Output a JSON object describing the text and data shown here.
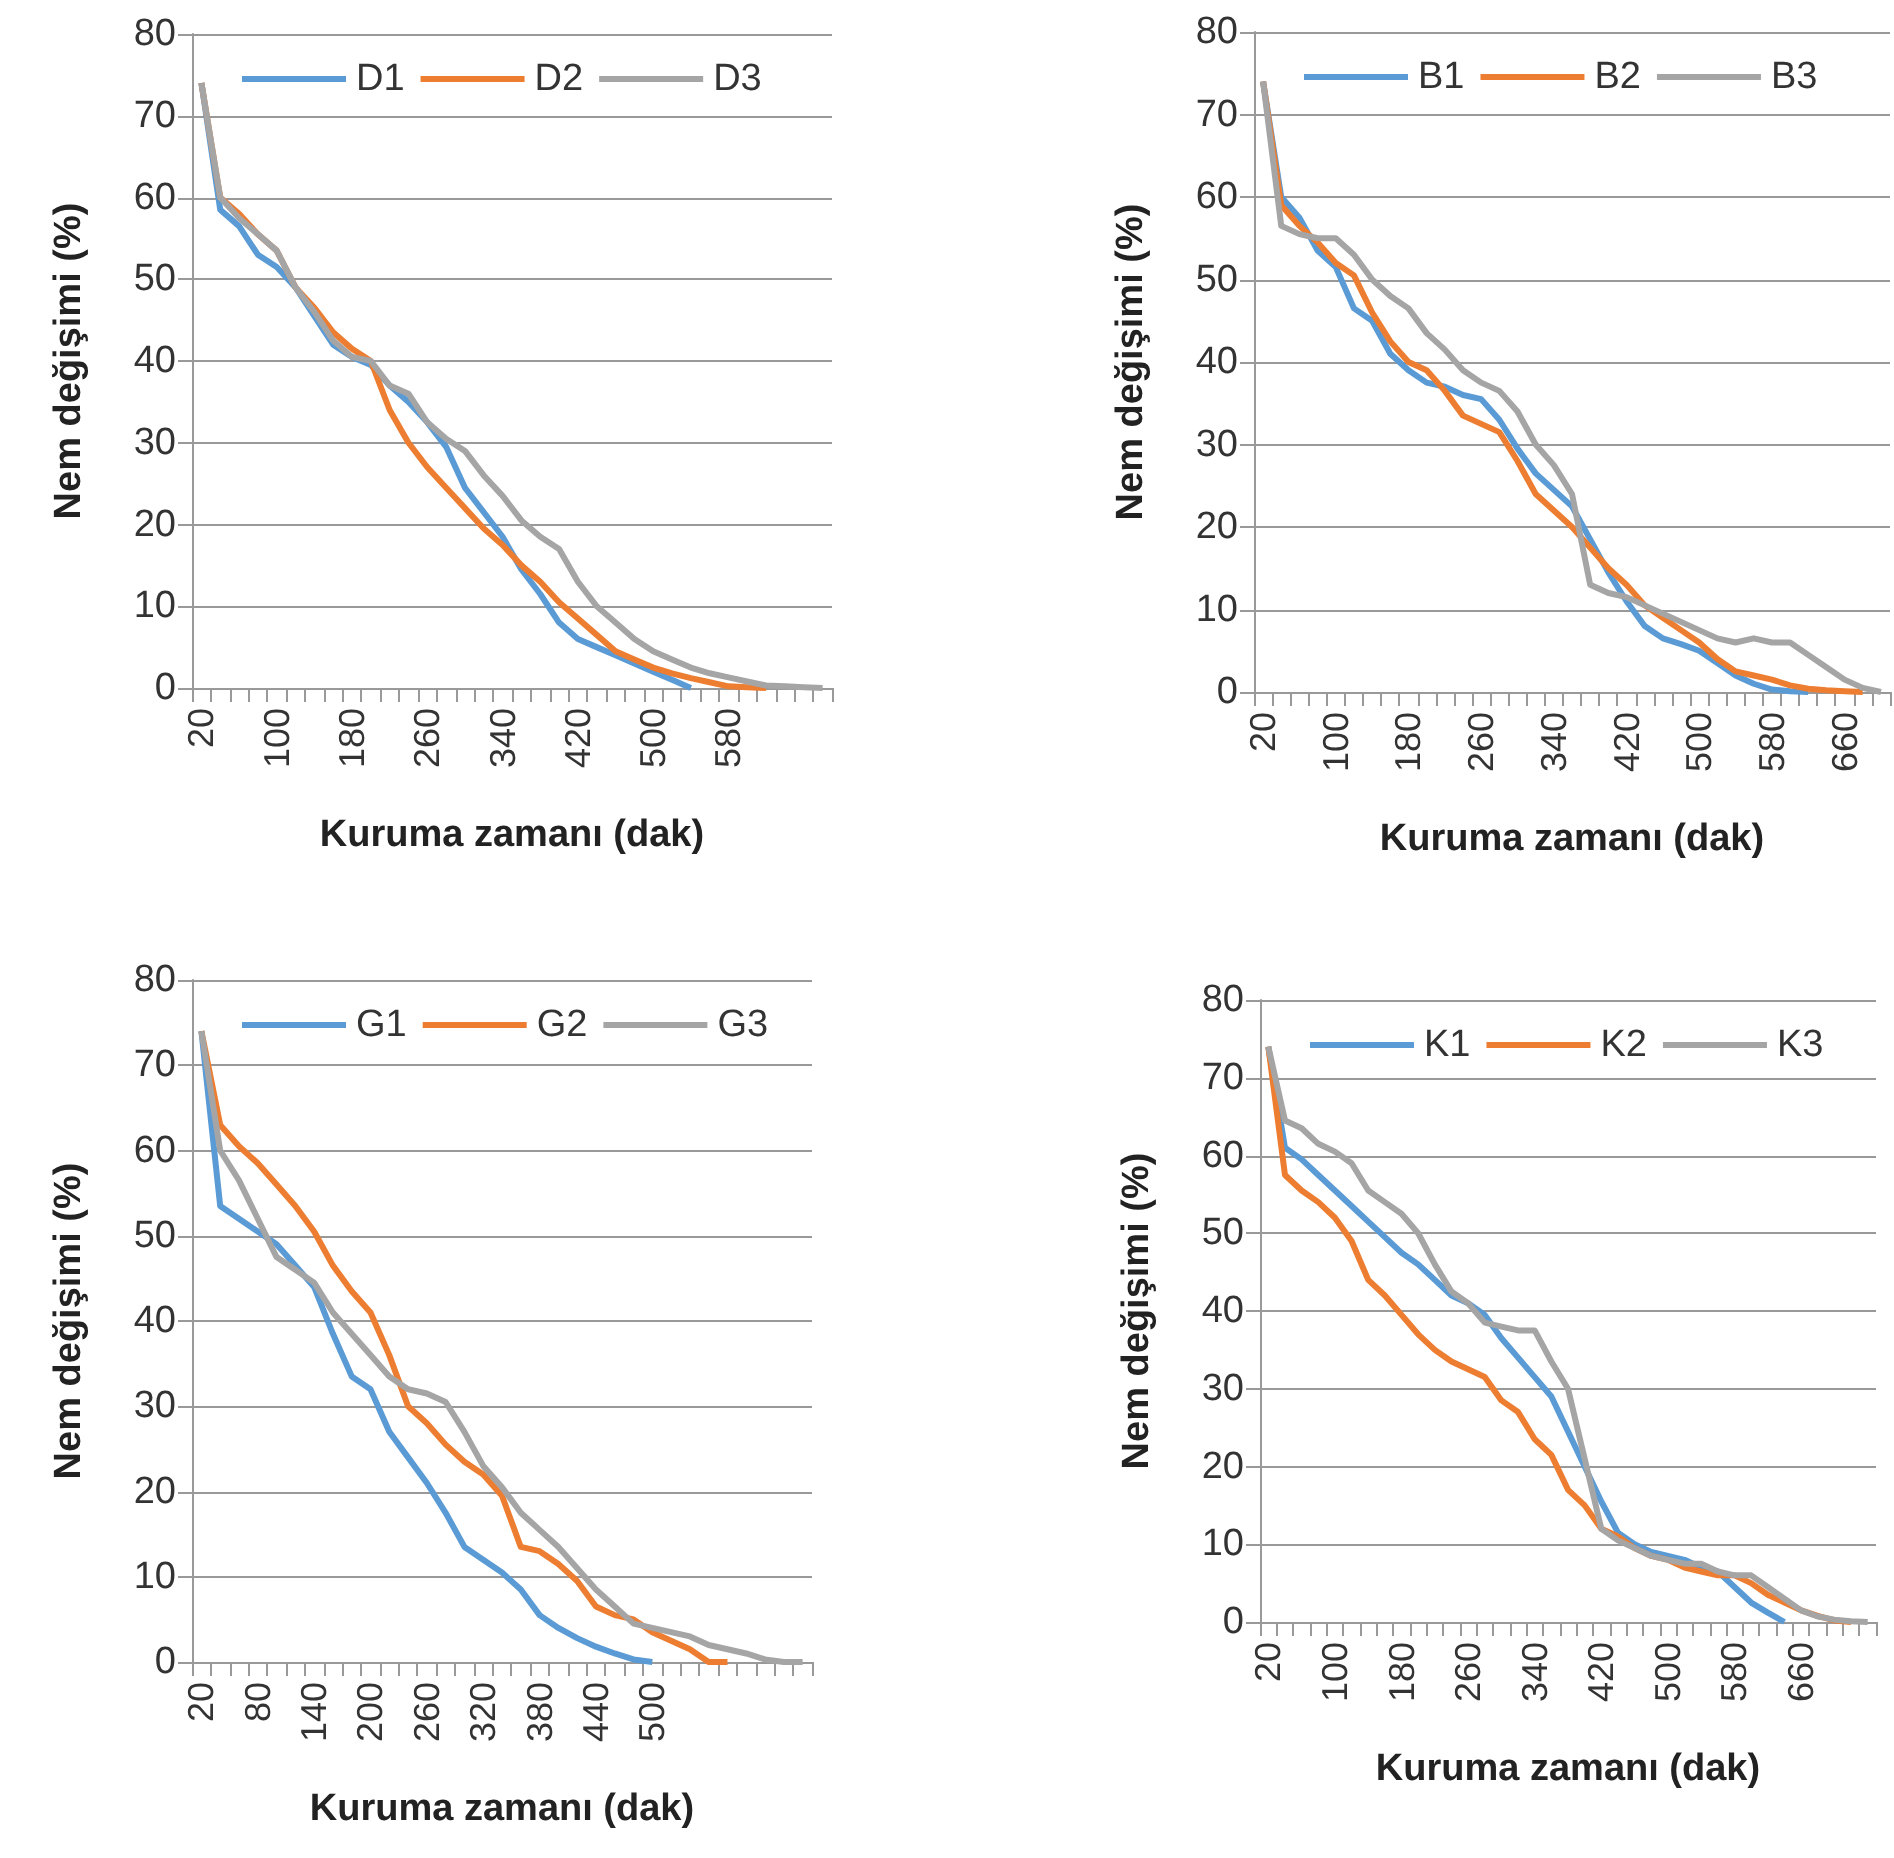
{
  "chart_data": [
    {
      "type": "line",
      "xlabel": "Kuruma zamanı (dak)",
      "ylabel": "Nem değişimi (%)",
      "ylim": [
        0,
        80
      ],
      "yticks": [
        0,
        10,
        20,
        30,
        40,
        50,
        60,
        70,
        80
      ],
      "grid": "y",
      "legend": "top",
      "categories": [
        "20",
        null,
        null,
        null,
        "100",
        null,
        null,
        null,
        "180",
        null,
        null,
        null,
        "260",
        null,
        null,
        null,
        "340",
        null,
        null,
        null,
        "420",
        null,
        null,
        null,
        "500",
        null,
        null,
        null,
        "580",
        null,
        null,
        null,
        null,
        null
      ],
      "series": [
        {
          "name": "D1",
          "color": "#5b9bd5",
          "values": [
            74,
            58.5,
            56.5,
            53,
            51.5,
            49,
            45.5,
            42,
            40.5,
            39.5,
            37,
            35,
            32.5,
            29.5,
            24.5,
            21.5,
            18.5,
            14.5,
            11.5,
            8,
            6,
            5,
            4,
            3,
            2,
            1,
            0,
            null,
            null,
            null,
            null,
            null,
            null,
            null
          ]
        },
        {
          "name": "D2",
          "color": "#ed7d31",
          "values": [
            74,
            60,
            58,
            55.5,
            53.5,
            49,
            46.5,
            43.5,
            41.5,
            40,
            34,
            30,
            27,
            24.5,
            22,
            19.5,
            17.5,
            15,
            13,
            10.5,
            8.5,
            6.5,
            4.5,
            3.5,
            2.5,
            1.8,
            1.2,
            0.7,
            0.2,
            0.1,
            0,
            null,
            null,
            null
          ]
        },
        {
          "name": "D3",
          "color": "#a5a5a5",
          "values": [
            74,
            60,
            57.5,
            55.5,
            53.5,
            49,
            46,
            42.5,
            40.5,
            40,
            37,
            36,
            32.5,
            30.5,
            29,
            26,
            23.5,
            20.5,
            18.5,
            17,
            13,
            10,
            8,
            6,
            4.5,
            3.5,
            2.5,
            1.8,
            1.3,
            0.8,
            0.3,
            0.2,
            0.1,
            0
          ]
        }
      ]
    },
    {
      "type": "line",
      "xlabel": "Kuruma zamanı (dak)",
      "ylabel": "Nem değişimi (%)",
      "ylim": [
        0,
        80
      ],
      "yticks": [
        0,
        10,
        20,
        30,
        40,
        50,
        60,
        70,
        80
      ],
      "grid": "y",
      "legend": "top",
      "categories": [
        "20",
        null,
        null,
        null,
        "100",
        null,
        null,
        null,
        "180",
        null,
        null,
        null,
        "260",
        null,
        null,
        null,
        "340",
        null,
        null,
        null,
        "420",
        null,
        null,
        null,
        "500",
        null,
        null,
        null,
        "580",
        null,
        null,
        null,
        "660",
        null,
        null
      ],
      "series": [
        {
          "name": "B1",
          "color": "#5b9bd5",
          "values": [
            74,
            60,
            57.5,
            53.5,
            51.5,
            46.5,
            45,
            41,
            39,
            37.5,
            37,
            36,
            35.5,
            33,
            29.5,
            26.5,
            24.5,
            22.5,
            18.5,
            14.5,
            11,
            8,
            6.5,
            5.8,
            5,
            3.5,
            2,
            1,
            0.3,
            0.1,
            0,
            null,
            null,
            null,
            null
          ]
        },
        {
          "name": "B2",
          "color": "#ed7d31",
          "values": [
            74,
            59,
            56.5,
            54.5,
            52,
            50.5,
            46,
            42.5,
            40,
            39,
            36.5,
            33.5,
            32.5,
            31.5,
            28,
            24,
            22,
            20,
            17.5,
            15,
            13,
            10.5,
            9,
            7.5,
            6,
            4,
            2.5,
            2,
            1.5,
            0.8,
            0.4,
            0.2,
            0.1,
            0,
            null
          ]
        },
        {
          "name": "B3",
          "color": "#a5a5a5",
          "values": [
            74,
            56.5,
            55.5,
            55,
            55,
            53,
            50,
            48,
            46.5,
            43.5,
            41.5,
            39,
            37.5,
            36.5,
            34,
            30,
            27.5,
            24,
            13,
            12,
            11.5,
            10.5,
            9.5,
            8.5,
            7.5,
            6.5,
            6,
            6.5,
            6,
            6,
            4.5,
            3,
            1.5,
            0.5,
            0
          ]
        }
      ]
    },
    {
      "type": "line",
      "xlabel": "Kuruma zamanı (dak)",
      "ylabel": "Nem değişimi (%)",
      "ylim": [
        0,
        80
      ],
      "yticks": [
        0,
        10,
        20,
        30,
        40,
        50,
        60,
        70,
        80
      ],
      "grid": "y",
      "legend": "top",
      "categories": [
        "20",
        null,
        null,
        "80",
        null,
        null,
        "140",
        null,
        null,
        "200",
        null,
        null,
        "260",
        null,
        null,
        "320",
        null,
        null,
        "380",
        null,
        null,
        "440",
        null,
        null,
        "500",
        null,
        null,
        null,
        null,
        null,
        null,
        null,
        null
      ],
      "series": [
        {
          "name": "G1",
          "color": "#5b9bd5",
          "values": [
            74,
            53.5,
            52,
            50.5,
            49,
            46.5,
            44,
            38.5,
            33.5,
            32,
            27,
            24,
            21,
            17.5,
            13.5,
            12,
            10.5,
            8.5,
            5.5,
            4,
            2.8,
            1.8,
            1,
            0.3,
            0,
            null,
            null,
            null,
            null,
            null,
            null,
            null,
            null
          ]
        },
        {
          "name": "G2",
          "color": "#ed7d31",
          "values": [
            74,
            63,
            60.5,
            58.5,
            56,
            53.5,
            50.5,
            46.5,
            43.5,
            41,
            36,
            30,
            28,
            25.5,
            23.5,
            22,
            19.5,
            13.5,
            13,
            11.5,
            9.5,
            6.5,
            5.5,
            5,
            3.5,
            2.5,
            1.5,
            0,
            0,
            null,
            null,
            null,
            null
          ]
        },
        {
          "name": "G3",
          "color": "#a5a5a5",
          "values": [
            74,
            60,
            56.5,
            52,
            47.5,
            46,
            44.5,
            41,
            38.5,
            36,
            33.5,
            32,
            31.5,
            30.5,
            27,
            23,
            20.5,
            17.5,
            15.5,
            13.5,
            11,
            8.5,
            6.5,
            4.5,
            4,
            3.5,
            3,
            2,
            1.5,
            1,
            0.3,
            0,
            0
          ]
        }
      ]
    },
    {
      "type": "line",
      "xlabel": "Kuruma zamanı (dak)",
      "ylabel": "Nem değişimi (%)",
      "ylim": [
        0,
        80
      ],
      "yticks": [
        0,
        10,
        20,
        30,
        40,
        50,
        60,
        70,
        80
      ],
      "grid": "y",
      "legend": "top",
      "categories": [
        "20",
        null,
        null,
        null,
        "100",
        null,
        null,
        null,
        "180",
        null,
        null,
        null,
        "260",
        null,
        null,
        null,
        "340",
        null,
        null,
        null,
        "420",
        null,
        null,
        null,
        "500",
        null,
        null,
        null,
        "580",
        null,
        null,
        null,
        "660",
        null,
        null,
        null,
        null
      ],
      "series": [
        {
          "name": "K1",
          "color": "#5b9bd5",
          "values": [
            74,
            61,
            59.5,
            57.5,
            55.5,
            53.5,
            51.5,
            49.5,
            47.5,
            46,
            44,
            42,
            41,
            39.5,
            36.5,
            34,
            31.5,
            29,
            24.5,
            20,
            15.5,
            11.5,
            10,
            9,
            8.5,
            8,
            7,
            6.5,
            4.5,
            2.5,
            1.2,
            0,
            null,
            null,
            null,
            null,
            null
          ]
        },
        {
          "name": "K2",
          "color": "#ed7d31",
          "values": [
            74,
            57.5,
            55.5,
            54,
            52,
            49,
            44,
            42,
            39.5,
            37,
            35,
            33.5,
            32.5,
            31.5,
            28.5,
            27,
            23.5,
            21.5,
            17,
            15,
            12,
            11,
            9.5,
            8.5,
            8,
            7,
            6.5,
            6,
            6,
            5,
            3.5,
            2.5,
            1.5,
            0.8,
            0.2,
            0,
            null
          ]
        },
        {
          "name": "K3",
          "color": "#a5a5a5",
          "values": [
            74,
            64.5,
            63.5,
            61.5,
            60.5,
            59,
            55.5,
            54,
            52.5,
            50,
            46,
            42.5,
            41,
            38.5,
            38,
            37.5,
            37.5,
            33.5,
            30,
            21,
            12,
            10.5,
            9.5,
            8.5,
            8,
            7.5,
            7.5,
            6.5,
            6,
            6,
            4.5,
            3,
            1.5,
            0.7,
            0.3,
            0.1,
            0
          ]
        }
      ]
    }
  ]
}
